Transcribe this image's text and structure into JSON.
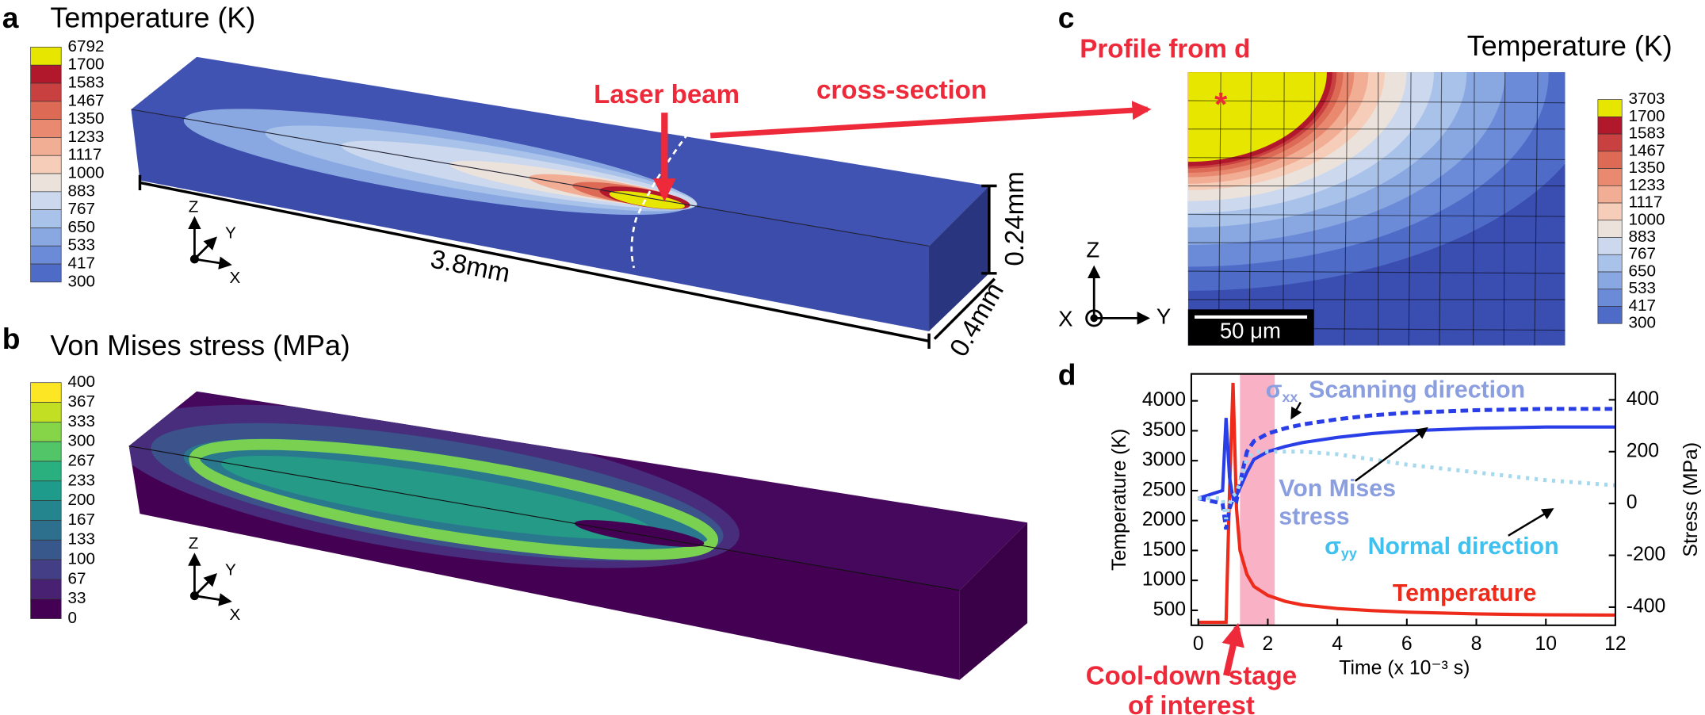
{
  "panels": {
    "a": {
      "letter": "a",
      "title": "Temperature (K)",
      "colorbar": {
        "levels": [
          6792,
          1700,
          1583,
          1467,
          1350,
          1233,
          1117,
          1000,
          883,
          767,
          650,
          533,
          417,
          300
        ],
        "colors": [
          "#e6e600",
          "#b2182b",
          "#c94040",
          "#dd6a55",
          "#e98a70",
          "#f2ad95",
          "#f6cdb8",
          "#ebe2dc",
          "#cbd8ee",
          "#a9c2ea",
          "#89a8e2",
          "#6b8ad8",
          "#4f6bc8"
        ]
      },
      "laser": "Laser beam",
      "cross_section": "cross-section",
      "length": "3.8mm",
      "height": "0.24mm",
      "width": "0.4mm",
      "axes": {
        "z": "Z",
        "y": "Y",
        "x": "X"
      }
    },
    "b": {
      "letter": "b",
      "title": "Von Mises stress (MPa)",
      "colorbar": {
        "levels": [
          400,
          367,
          333,
          300,
          267,
          233,
          200,
          167,
          133,
          100,
          67,
          33,
          0
        ],
        "colors": [
          "#fde725",
          "#c2df23",
          "#86d549",
          "#52c569",
          "#2ab07f",
          "#1e9b8a",
          "#25858e",
          "#2d708e",
          "#38588c",
          "#433e85",
          "#482173",
          "#440154"
        ]
      },
      "axes": {
        "z": "Z",
        "y": "Y",
        "x": "X"
      }
    },
    "c": {
      "letter": "c",
      "title": "Temperature (K)",
      "profile": "Profile from d",
      "marker": "*",
      "scale": "50 μm",
      "colorbar": {
        "levels": [
          3703,
          1700,
          1583,
          1467,
          1350,
          1233,
          1117,
          1000,
          883,
          767,
          650,
          533,
          417,
          300
        ],
        "colors": [
          "#e6e600",
          "#b2182b",
          "#c94040",
          "#dd6a55",
          "#e98a70",
          "#f2ad95",
          "#f6cdb8",
          "#ebe2dc",
          "#cbd8ee",
          "#a9c2ea",
          "#89a8e2",
          "#6b8ad8",
          "#4f6bc8"
        ]
      },
      "axes": {
        "z": "Z",
        "y": "Y",
        "x": "X"
      }
    },
    "d": {
      "letter": "d",
      "cooldown": [
        "Cool-down stage",
        "of interest"
      ]
    }
  },
  "chart_data": {
    "type": "line",
    "x_label": "Time (x 10⁻³ s)",
    "y_label": "Temperature (K)",
    "y2_label": "Stress (MPa)",
    "x": [
      0,
      0.7,
      0.8,
      0.9,
      1.0,
      1.1,
      1.2,
      1.4,
      1.6,
      2,
      2.5,
      3,
      4,
      5,
      6,
      8,
      10,
      12
    ],
    "xlim": [
      -0.2,
      12
    ],
    "xticks": [
      0,
      2,
      4,
      6,
      8,
      10,
      12
    ],
    "ylim": [
      250,
      4450
    ],
    "yticks": [
      500,
      1000,
      1500,
      2000,
      2500,
      3000,
      3500,
      4000
    ],
    "y2lim": [
      -470,
      500
    ],
    "y2ticks": [
      -400,
      -200,
      0,
      200,
      400
    ],
    "highlight": [
      1.2,
      2.2
    ],
    "series": [
      {
        "name": "Temperature",
        "color": "#ee2a1a",
        "style": "solid",
        "values": [
          300,
          300,
          300,
          2500,
          4300,
          2200,
          1500,
          1100,
          900,
          750,
          650,
          590,
          530,
          495,
          470,
          440,
          425,
          420
        ]
      },
      {
        "name_lines": [
          "Von Mises",
          "stress"
        ],
        "color": "#2a3ee8",
        "style": "solid",
        "axis": "y2",
        "values": [
          20,
          50,
          330,
          100,
          20,
          30,
          60,
          120,
          170,
          200,
          220,
          235,
          255,
          270,
          280,
          290,
          295,
          295
        ]
      },
      {
        "symbol": "σ",
        "subscript": "xx",
        "name": "Scanning direction",
        "color": "#2a3ee8",
        "style": "dashed",
        "axis": "y2",
        "values": [
          20,
          0,
          -100,
          -20,
          20,
          10,
          80,
          200,
          240,
          270,
          290,
          305,
          325,
          340,
          350,
          360,
          365,
          365
        ]
      },
      {
        "symbol": "σ",
        "subscript": "yy",
        "name": "Normal direction",
        "color": "#a6d8ee",
        "style": "dotted",
        "axis": "y2",
        "values": [
          20,
          20,
          -60,
          0,
          30,
          40,
          80,
          170,
          200,
          200,
          200,
          200,
          190,
          170,
          150,
          120,
          90,
          70
        ]
      }
    ]
  }
}
